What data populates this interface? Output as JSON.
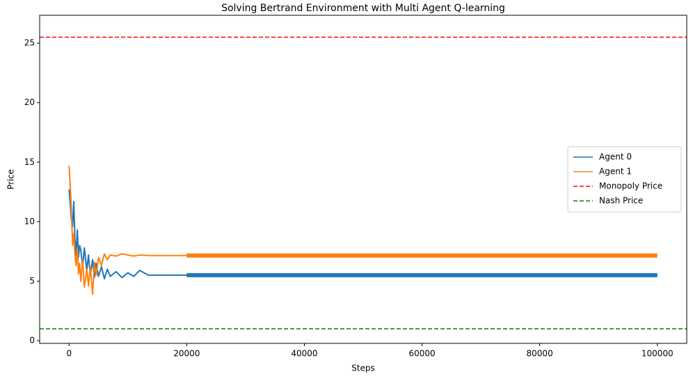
{
  "chart_data": {
    "type": "line",
    "title": "Solving Bertrand Environment with Multi Agent Q-learning",
    "x_label": "Steps",
    "y_label": "Price",
    "x": [
      0,
      200,
      400,
      600,
      800,
      1000,
      1200,
      1400,
      1600,
      1800,
      2000,
      2300,
      2600,
      3000,
      3300,
      3600,
      4000,
      4300,
      4600,
      5000,
      5500,
      6000,
      6500,
      7000,
      8000,
      9000,
      10000,
      11000,
      12000,
      13500,
      20000,
      100000
    ],
    "series": [
      {
        "name": "Agent 0",
        "color": "#1f77b4",
        "values": [
          12.7,
          11.5,
          10.2,
          9.6,
          11.7,
          8.5,
          7.2,
          9.3,
          7.0,
          8.0,
          7.6,
          6.2,
          7.8,
          5.9,
          7.2,
          5.5,
          6.8,
          5.3,
          6.5,
          5.4,
          6.2,
          5.2,
          6.0,
          5.4,
          5.8,
          5.3,
          5.7,
          5.4,
          5.9,
          5.5,
          5.5,
          5.5
        ]
      },
      {
        "name": "Agent 1",
        "color": "#ff7f0e",
        "values": [
          14.7,
          13.0,
          11.0,
          8.0,
          9.0,
          7.2,
          6.3,
          7.8,
          5.6,
          6.5,
          5.0,
          6.8,
          4.5,
          6.0,
          4.6,
          6.2,
          3.9,
          6.6,
          5.5,
          7.0,
          6.3,
          7.3,
          6.8,
          7.2,
          7.1,
          7.3,
          7.2,
          7.1,
          7.2,
          7.15,
          7.15,
          7.15
        ]
      }
    ],
    "hlines": [
      {
        "name": "Monopoly Price",
        "color": "#ff0000",
        "value": 25.5
      },
      {
        "name": "Nash Price",
        "color": "#008000",
        "value": 1.0
      }
    ],
    "xlim": [
      -5000,
      105000
    ],
    "ylim": [
      -0.23,
      27.34
    ],
    "xticks": [
      0,
      20000,
      40000,
      60000,
      80000,
      100000
    ],
    "yticks": [
      0,
      5,
      10,
      15,
      20,
      25
    ],
    "legend": "right"
  }
}
